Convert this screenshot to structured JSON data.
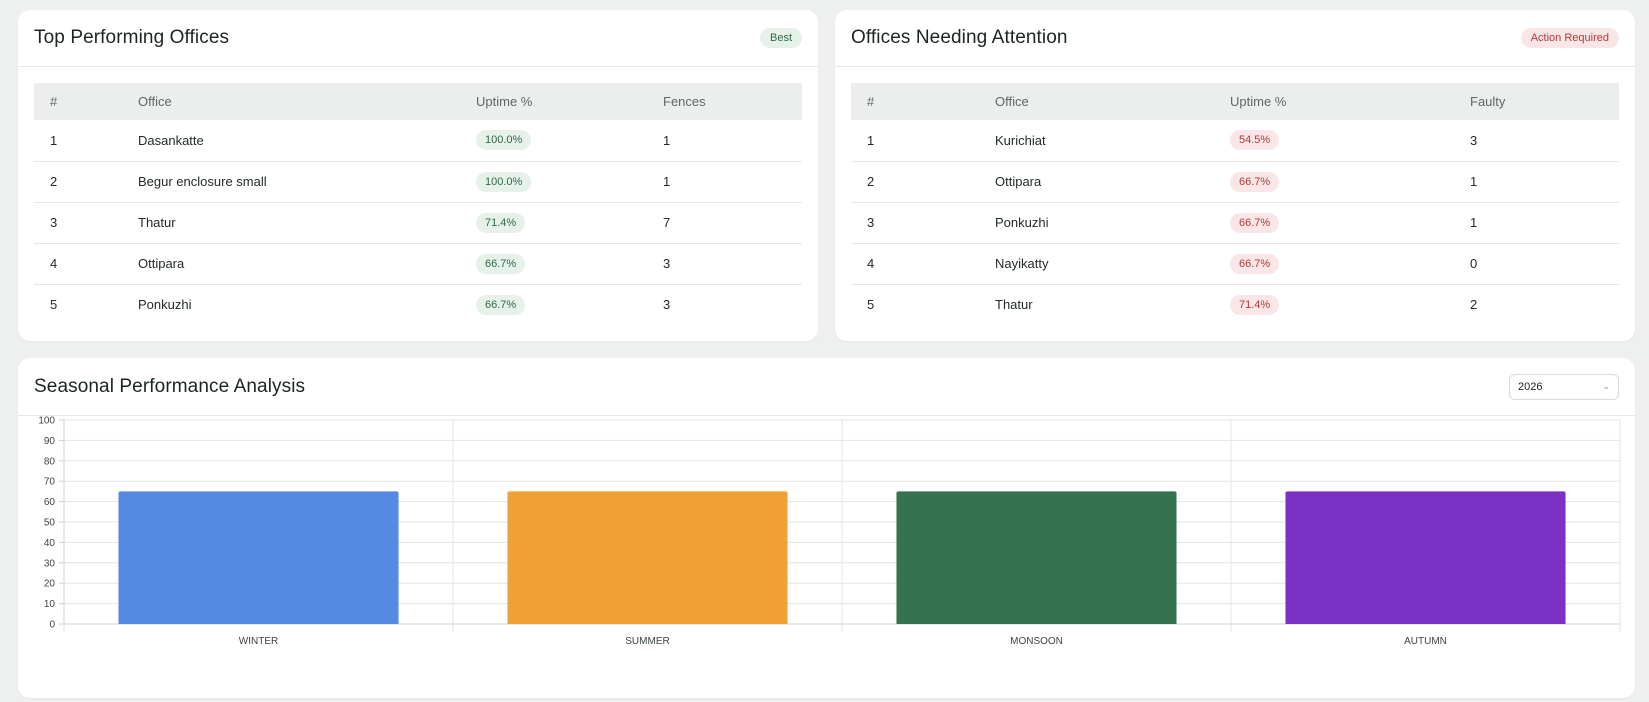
{
  "top_offices": {
    "title": "Top Performing Offices",
    "badge": "Best",
    "columns": [
      "#",
      "Office",
      "Uptime %",
      "Fences"
    ],
    "rows": [
      {
        "rank": "1",
        "office": "Dasankatte",
        "uptime": "100.0%",
        "count": "1"
      },
      {
        "rank": "2",
        "office": "Begur enclosure small",
        "uptime": "100.0%",
        "count": "1"
      },
      {
        "rank": "3",
        "office": "Thatur",
        "uptime": "71.4%",
        "count": "7"
      },
      {
        "rank": "4",
        "office": "Ottipara",
        "uptime": "66.7%",
        "count": "3"
      },
      {
        "rank": "5",
        "office": "Ponkuzhi",
        "uptime": "66.7%",
        "count": "3"
      }
    ]
  },
  "attention_offices": {
    "title": "Offices Needing Attention",
    "badge": "Action Required",
    "columns": [
      "#",
      "Office",
      "Uptime %",
      "Faulty"
    ],
    "rows": [
      {
        "rank": "1",
        "office": "Kurichiat",
        "uptime": "54.5%",
        "count": "3"
      },
      {
        "rank": "2",
        "office": "Ottipara",
        "uptime": "66.7%",
        "count": "1"
      },
      {
        "rank": "3",
        "office": "Ponkuzhi",
        "uptime": "66.7%",
        "count": "1"
      },
      {
        "rank": "4",
        "office": "Nayikatty",
        "uptime": "66.7%",
        "count": "0"
      },
      {
        "rank": "5",
        "office": "Thatur",
        "uptime": "71.4%",
        "count": "2"
      }
    ]
  },
  "seasonal": {
    "title": "Seasonal Performance Analysis",
    "year_select": "2026"
  },
  "chart_data": {
    "type": "bar",
    "categories": [
      "WINTER",
      "SUMMER",
      "MONSOON",
      "AUTUMN"
    ],
    "values": [
      65,
      65,
      65,
      65
    ],
    "colors": [
      "#5589e2",
      "#f0a035",
      "#357350",
      "#7b32c4"
    ],
    "ylim": [
      0,
      100
    ],
    "yticks": [
      "0",
      "10",
      "20",
      "30",
      "40",
      "50",
      "60",
      "70",
      "80",
      "90",
      "100"
    ],
    "grid": true
  }
}
